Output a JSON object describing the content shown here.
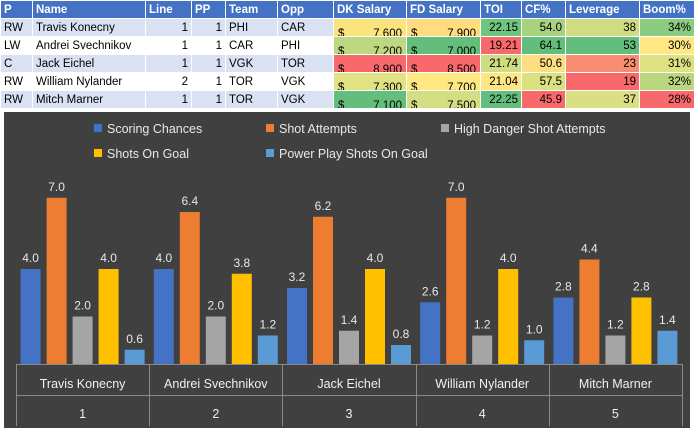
{
  "table": {
    "headers": [
      "P",
      "Name",
      "Line",
      "PP",
      "Team",
      "Opp",
      "DK Salary",
      "FD Salary",
      "TOI",
      "CF%",
      "Leverage",
      "Boom%"
    ],
    "currency": "$",
    "rows": [
      {
        "pos": "RW",
        "name": "Travis Konecny",
        "line": "1",
        "pp": "1",
        "team": "PHI",
        "opp": "CAR",
        "dk": "7,600",
        "fd": "7,900",
        "toi": "22.15",
        "cf": "54.0",
        "lev": "38",
        "boom": "34%",
        "colors": {
          "dk": "#fbe47e",
          "fd": "#fedc7f",
          "toi": "#6fc57e",
          "cf": "#a9d27f",
          "lev": "#cfdc82",
          "boom": "#8ccc80"
        }
      },
      {
        "pos": "LW",
        "name": "Andrei Svechnikov",
        "line": "1",
        "pp": "1",
        "team": "CAR",
        "opp": "PHI",
        "dk": "7,200",
        "fd": "7,000",
        "toi": "19.21",
        "cf": "64.1",
        "lev": "53",
        "boom": "30%",
        "colors": {
          "dk": "#bdd881",
          "fd": "#63be7b",
          "toi": "#f8696b",
          "cf": "#63be7b",
          "lev": "#63be7b",
          "boom": "#ffe884"
        }
      },
      {
        "pos": "C",
        "name": "Jack Eichel",
        "line": "1",
        "pp": "1",
        "team": "VGK",
        "opp": "TOR",
        "dk": "8,900",
        "fd": "8,500",
        "toi": "21.74",
        "cf": "50.6",
        "lev": "23",
        "boom": "31%",
        "colors": {
          "dk": "#f8696b",
          "fd": "#f8696b",
          "toi": "#d0dc82",
          "cf": "#fede82",
          "lev": "#f98d71",
          "boom": "#dde182"
        }
      },
      {
        "pos": "RW",
        "name": "William Nylander",
        "line": "2",
        "pp": "1",
        "team": "TOR",
        "opp": "VGK",
        "dk": "7,300",
        "fd": "7,700",
        "toi": "21.04",
        "cf": "57.5",
        "lev": "19",
        "boom": "32%",
        "colors": {
          "dk": "#e1e283",
          "fd": "#fee882",
          "toi": "#fee683",
          "cf": "#dbe081",
          "lev": "#f8696b",
          "boom": "#bad780"
        }
      },
      {
        "pos": "RW",
        "name": "Mitch Marner",
        "line": "1",
        "pp": "1",
        "team": "TOR",
        "opp": "VGK",
        "dk": "7,100",
        "fd": "7,500",
        "toi": "22.25",
        "cf": "45.9",
        "lev": "37",
        "boom": "28%",
        "colors": {
          "dk": "#63be7b",
          "fd": "#d3dd82",
          "toi": "#63be7b",
          "cf": "#f8696b",
          "lev": "#d9df82",
          "boom": "#f8696b"
        }
      }
    ]
  },
  "chart_data": {
    "type": "bar",
    "background": "#404040",
    "groups": [
      {
        "name": "Travis Konecny",
        "line": "1"
      },
      {
        "name": "Andrei Svechnikov",
        "line": "2"
      },
      {
        "name": "Jack Eichel",
        "line": "3"
      },
      {
        "name": "William Nylander",
        "line": "4"
      },
      {
        "name": "Mitch Marner",
        "line": "5"
      }
    ],
    "series": [
      {
        "name": "Scoring Chances",
        "color": "#4472c4",
        "values": [
          4.0,
          4.0,
          3.2,
          2.6,
          2.8
        ]
      },
      {
        "name": "Shot Attempts",
        "color": "#ed7d31",
        "values": [
          7.0,
          6.4,
          6.2,
          7.0,
          4.4
        ]
      },
      {
        "name": "High Danger Shot Attempts",
        "color": "#a5a5a5",
        "values": [
          2.0,
          2.0,
          1.4,
          1.2,
          1.2
        ]
      },
      {
        "name": "Shots On Goal",
        "color": "#ffc000",
        "values": [
          4.0,
          3.8,
          4.0,
          4.0,
          2.8
        ]
      },
      {
        "name": "Power Play Shots On Goal",
        "color": "#5b9bd5",
        "values": [
          0.6,
          1.2,
          0.8,
          1.0,
          1.4
        ]
      }
    ],
    "ylim": [
      0,
      8
    ],
    "grid": false,
    "legend_position": "top"
  }
}
